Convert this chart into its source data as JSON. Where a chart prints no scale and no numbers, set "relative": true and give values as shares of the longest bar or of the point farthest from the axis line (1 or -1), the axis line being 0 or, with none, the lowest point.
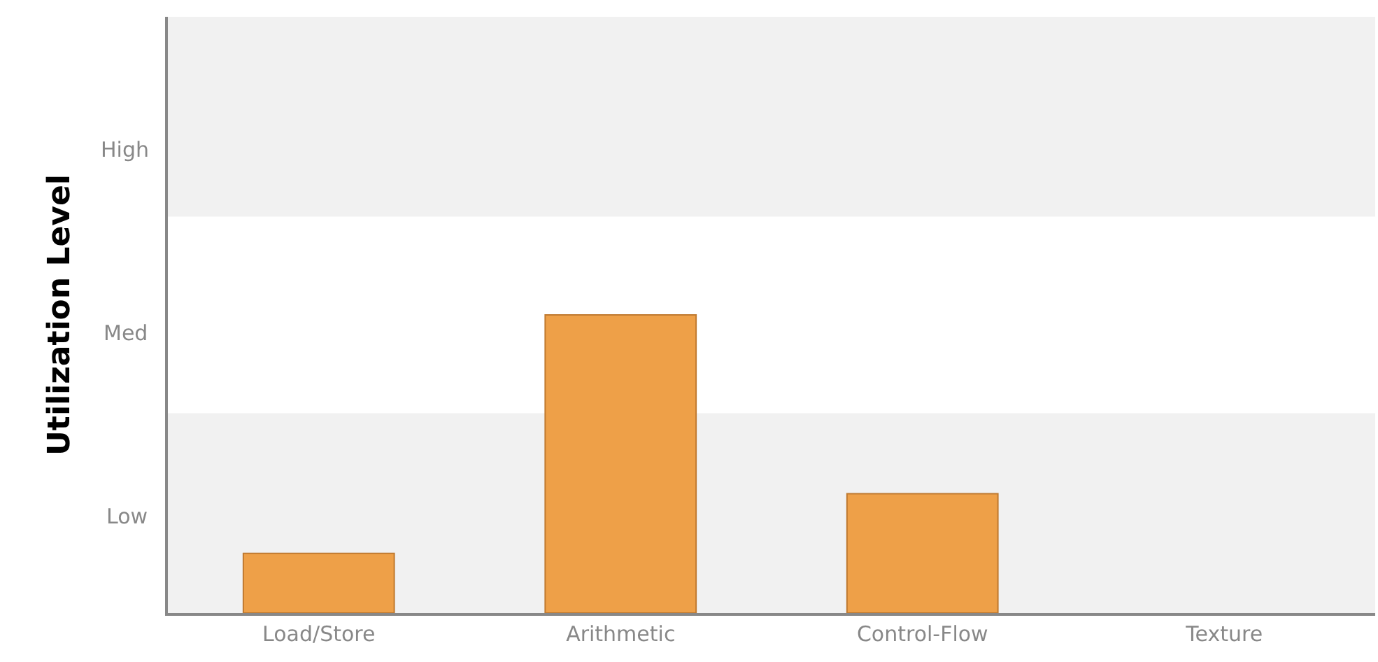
{
  "chart_data": {
    "type": "bar",
    "ylabel": "Utilization Level",
    "relative": true,
    "categories": [
      "Load/Store",
      "Arithmetic",
      "Control-Flow",
      "Texture"
    ],
    "values": [
      0.2,
      1,
      0.4,
      0
    ],
    "color": "#eea048",
    "annotations": [
      "High",
      "Med",
      "Low"
    ],
    "bands": [
      {
        "axis": "y",
        "from": 0,
        "to": 0.67,
        "color": "#f1f1f1"
      },
      {
        "axis": "y",
        "from": 1.33,
        "to": 2,
        "color": "#f1f1f1"
      }
    ],
    "grid": false,
    "legend": false
  }
}
